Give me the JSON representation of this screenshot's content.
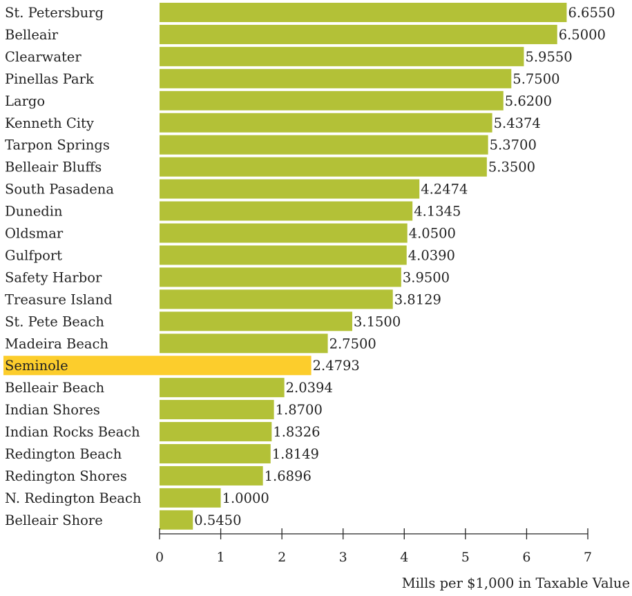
{
  "chart_data": {
    "type": "bar",
    "orientation": "horizontal",
    "categories": [
      "St. Petersburg",
      "Belleair",
      "Clearwater",
      "Pinellas Park",
      "Largo",
      "Kenneth City",
      "Tarpon Springs",
      "Belleair Bluffs",
      "South Pasadena",
      "Dunedin",
      "Oldsmar",
      "Gulfport",
      "Safety Harbor",
      "Treasure Island",
      "St. Pete Beach",
      "Madeira Beach",
      "Seminole",
      "Belleair Beach",
      "Indian Shores",
      "Indian Rocks Beach",
      "Redington Beach",
      "Redington Shores",
      "N. Redington Beach",
      "Belleair Shore"
    ],
    "values": [
      6.655,
      6.5,
      5.955,
      5.75,
      5.62,
      5.4374,
      5.37,
      5.35,
      4.2474,
      4.1345,
      4.05,
      4.039,
      3.95,
      3.8129,
      3.15,
      2.75,
      2.4793,
      2.0394,
      1.87,
      1.8326,
      1.8149,
      1.6896,
      1.0,
      0.545
    ],
    "value_labels": [
      "6.6550",
      "6.5000",
      "5.9550",
      "5.7500",
      "5.6200",
      "5.4374",
      "5.3700",
      "5.3500",
      "4.2474",
      "4.1345",
      "4.0500",
      "4.0390",
      "3.9500",
      "3.8129",
      "3.1500",
      "2.7500",
      "2.4793",
      "2.0394",
      "1.8700",
      "1.8326",
      "1.8149",
      "1.6896",
      "1.0000",
      "0.5450"
    ],
    "highlight": "Seminole",
    "xlabel": "Mills per $1,000 in Taxable Value",
    "ylabel": "",
    "xlim": [
      0,
      7
    ],
    "xticks": [
      0,
      1,
      2,
      3,
      4,
      5,
      6,
      7
    ],
    "grid": false,
    "colors": {
      "bar": "#b3c137",
      "highlight": "#fccd2c",
      "axis": "#222222"
    }
  }
}
